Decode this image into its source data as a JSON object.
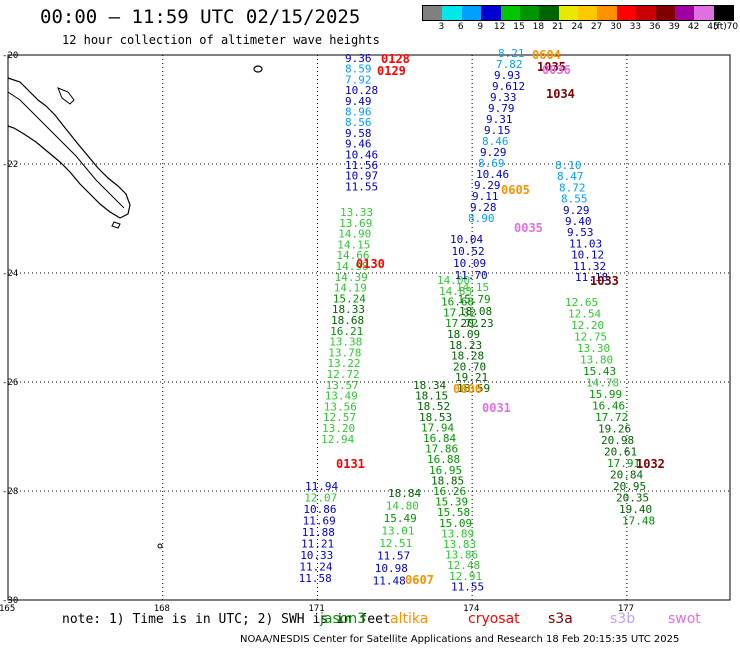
{
  "header": {
    "title": "00:00 – 11:59 UTC 02/15/2025",
    "subtitle": "12 hour collection of altimeter wave heights"
  },
  "legend": {
    "unit": "(ft)",
    "bins": [
      {
        "label": "3",
        "color": "#808080"
      },
      {
        "label": "6",
        "color": "#00e8e8"
      },
      {
        "label": "9",
        "color": "#00a0ff"
      },
      {
        "label": "12",
        "color": "#0000d0"
      },
      {
        "label": "15",
        "color": "#00c800"
      },
      {
        "label": "18",
        "color": "#009600"
      },
      {
        "label": "21",
        "color": "#006400"
      },
      {
        "label": "24",
        "color": "#e8e800"
      },
      {
        "label": "27",
        "color": "#ffc800"
      },
      {
        "label": "30",
        "color": "#ff9000"
      },
      {
        "label": "33",
        "color": "#ff0000"
      },
      {
        "label": "36",
        "color": "#c80000"
      },
      {
        "label": "39",
        "color": "#800000"
      },
      {
        "label": "42",
        "color": "#a000a0"
      },
      {
        "label": "45",
        "color": "#e070e0"
      },
      {
        "label": "70",
        "color": "#000000"
      }
    ]
  },
  "map": {
    "lat_labels": [
      "-20",
      "-22",
      "-24",
      "-26",
      "-28",
      "-30"
    ],
    "lon_labels": [
      "165",
      "168",
      "171",
      "174",
      "177"
    ]
  },
  "tracks": [
    {
      "color_key": "blue",
      "values": [
        "9.36",
        "8.59",
        "7.92",
        "10.28",
        "9.49",
        "8.96",
        "8.56",
        "9.58",
        "9.46",
        "10.46",
        "11.56",
        "10.97",
        "11.55"
      ]
    },
    {
      "color_key": "green",
      "values": [
        "13.33",
        "13.69",
        "14.90",
        "14.15",
        "14.66",
        "14.98",
        "14.39",
        "14.19",
        "15.24",
        "18.33",
        "18.68",
        "16.21",
        "13.38",
        "13.78",
        "13.22",
        "12.72",
        "13.57",
        "13.49",
        "13.56",
        "12.57",
        "13.20",
        "12.94"
      ]
    },
    {
      "color_key": "blue",
      "values": [
        "11.94",
        "12.07",
        "10.86",
        "11.69",
        "11.88",
        "11.21",
        "10.33",
        "11.24",
        "11.58"
      ]
    },
    {
      "color_key": "green",
      "values": [
        "18.84",
        "14.80",
        "15.49",
        "13.01",
        "12.51",
        "11.57",
        "10.98",
        "11.48"
      ]
    },
    {
      "color_key": "green",
      "values": [
        "18.34",
        "18.15",
        "18.52",
        "18.53",
        "17.94",
        "16.84",
        "17.86",
        "16.88",
        "16.95",
        "18.85",
        "16.26",
        "15.39",
        "15.58",
        "15.09",
        "13.89",
        "13.83",
        "13.86",
        "12.48",
        "12.91",
        "11.55"
      ]
    },
    {
      "color_key": "green",
      "values": [
        "14.00",
        "14.83",
        "16.68",
        "17.32",
        "17.72",
        "18.09",
        "18.23",
        "18.28",
        "20.70",
        "19.21",
        "18.59"
      ]
    },
    {
      "color_key": "blue",
      "values": [
        "10.04",
        "10.52",
        "10.09",
        "11.70",
        "14.15",
        "15.79",
        "18.08",
        "20.23"
      ]
    },
    {
      "color_key": "blue",
      "values": [
        "8.21",
        "7.82",
        "9.93",
        "9.612",
        "9.33",
        "9.79",
        "9.31",
        "9.15",
        "8.46",
        "9.29",
        "8.69",
        "10.46",
        "9.29",
        "9.11",
        "9.28",
        "8.90"
      ]
    },
    {
      "color_key": "blue",
      "values": [
        "8.10",
        "8.47",
        "8.72",
        "8.55",
        "9.29",
        "9.40",
        "9.53",
        "11.03",
        "10.12",
        "11.32",
        "11.18"
      ]
    },
    {
      "color_key": "green",
      "values": [
        "12.65",
        "12.54",
        "12.20",
        "12.75",
        "13.30",
        "13.80",
        "15.43",
        "14.78",
        "15.99",
        "16.46",
        "17.72",
        "19.26",
        "20.98",
        "20.61",
        "17.91",
        "20.84",
        "20.95",
        "20.35",
        "19.40",
        "17.48"
      ]
    }
  ],
  "time_labels": [
    {
      "text": "0128",
      "color": "#ff0000"
    },
    {
      "text": "0129",
      "color": "#ff0000"
    },
    {
      "text": "0130",
      "color": "#ff0000"
    },
    {
      "text": "0131",
      "color": "#ff0000"
    },
    {
      "text": "0604",
      "color": "#ff9000"
    },
    {
      "text": "1035",
      "color": "#800000"
    },
    {
      "text": "0036",
      "color": "#e070e0"
    },
    {
      "text": "1034",
      "color": "#800000"
    },
    {
      "text": "0605",
      "color": "#ff9000"
    },
    {
      "text": "0035",
      "color": "#e070e0"
    },
    {
      "text": "1033",
      "color": "#800000"
    },
    {
      "text": "0606",
      "color": "#ff9000"
    },
    {
      "text": "0031",
      "color": "#e070e0"
    },
    {
      "text": "1032",
      "color": "#800000"
    },
    {
      "text": "0607",
      "color": "#ff9000"
    }
  ],
  "footer": {
    "note": "note: 1) Time is in UTC; 2) SWH is in feet",
    "satellites": [
      {
        "name": "jason3",
        "color": "#009600"
      },
      {
        "name": "altika",
        "color": "#ff9000"
      },
      {
        "name": "cryosat",
        "color": "#ff0000"
      },
      {
        "name": "s3a",
        "color": "#800000"
      },
      {
        "name": "s3b",
        "color": "#c0a0f0"
      },
      {
        "name": "swot",
        "color": "#e070e0"
      }
    ],
    "credit": "NOAA/NESDIS Center for Satellite Applications and Research   18 Feb 20:15:35 UTC 2025"
  }
}
